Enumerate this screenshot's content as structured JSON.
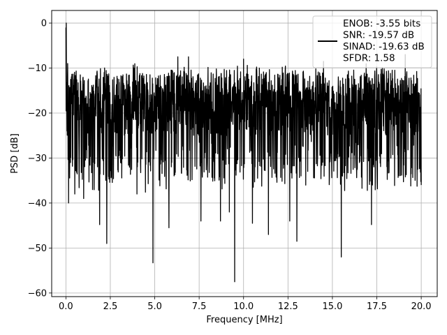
{
  "chart_data": {
    "type": "line",
    "title": "",
    "xlabel": "Frequency [MHz]",
    "ylabel": "PSD [dB]",
    "xlim": [
      -0.8,
      20.9
    ],
    "ylim": [
      -60.8,
      2.8
    ],
    "xticks": [
      0.0,
      2.5,
      5.0,
      7.5,
      10.0,
      12.5,
      15.0,
      17.5,
      20.0
    ],
    "xtick_labels": [
      "0.0",
      "2.5",
      "5.0",
      "7.5",
      "10.0",
      "12.5",
      "15.0",
      "17.5",
      "20.0"
    ],
    "yticks": [
      0,
      -10,
      -20,
      -30,
      -40,
      -50,
      -60
    ],
    "ytick_labels": [
      "0",
      "−10",
      "−20",
      "−30",
      "−40",
      "−50",
      "−60"
    ],
    "grid": true,
    "legend_position": "upper-right",
    "line_color": "#000000",
    "series": [
      {
        "name": "ENOB: -3.55 bits\nSNR: -19.57 dB\nSINAD: -19.63 dB\nSFDR: 1.58",
        "x_range": [
          0.0,
          20.0
        ],
        "baseline_db": -21,
        "upper_envelope_db": [
          -10,
          -17
        ],
        "lower_envelope_db": [
          -35,
          -25
        ],
        "points": [
          {
            "x": 0.0,
            "y": -1
          },
          {
            "x": 0.02,
            "y": 0
          },
          {
            "x": 0.06,
            "y": -24
          },
          {
            "x": 0.1,
            "y": -9
          },
          {
            "x": 0.15,
            "y": -40
          },
          {
            "x": 0.5,
            "y": -38
          },
          {
            "x": 1.0,
            "y": -39
          },
          {
            "x": 1.5,
            "y": -37
          },
          {
            "x": 1.9,
            "y": -44.8
          },
          {
            "x": 2.3,
            "y": -49
          },
          {
            "x": 4.0,
            "y": -38
          },
          {
            "x": 4.9,
            "y": -53.3
          },
          {
            "x": 5.8,
            "y": -45.5
          },
          {
            "x": 6.3,
            "y": -7.5
          },
          {
            "x": 6.9,
            "y": -7.5
          },
          {
            "x": 7.6,
            "y": -44
          },
          {
            "x": 8.7,
            "y": -44
          },
          {
            "x": 9.2,
            "y": -42
          },
          {
            "x": 9.5,
            "y": -57.5
          },
          {
            "x": 10.0,
            "y": -8
          },
          {
            "x": 10.5,
            "y": -44.5
          },
          {
            "x": 11.4,
            "y": -47
          },
          {
            "x": 12.6,
            "y": -44
          },
          {
            "x": 13.0,
            "y": -48.5
          },
          {
            "x": 14.5,
            "y": -8.5
          },
          {
            "x": 15.5,
            "y": -52
          },
          {
            "x": 17.2,
            "y": -44.8
          },
          {
            "x": 19.1,
            "y": -7
          },
          {
            "x": 20.0,
            "y": -36
          }
        ]
      }
    ]
  }
}
